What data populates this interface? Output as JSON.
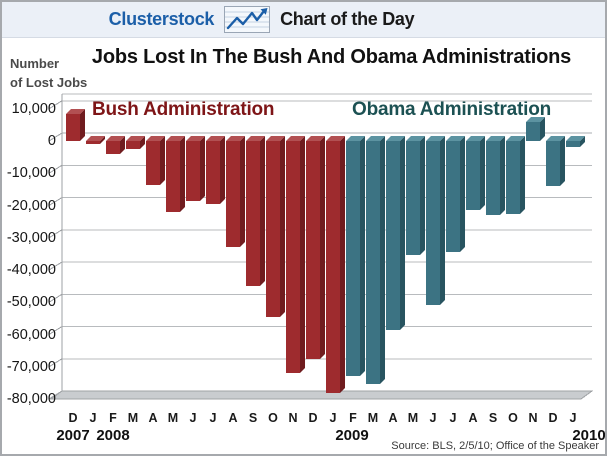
{
  "header": {
    "brand": "Clusterstock",
    "title": "Chart of the Day"
  },
  "title": "Jobs Lost In The Bush And Obama Administrations",
  "y_axis_caption_line1": "Number",
  "y_axis_caption_line2": "of Lost Jobs",
  "annotations": {
    "bush": "Bush Administration",
    "obama": "Obama Administration"
  },
  "source": "Source: BLS, 2/5/10; Office of the Speaker",
  "colors": {
    "brand_blue": "#1c5fa8",
    "header_bg": "#ebf0f7",
    "bush_label": "#7e1517",
    "obama_label": "#1c5153",
    "bush_front": "#9e2b2e",
    "bush_side": "#701c1f",
    "bush_top": "#b25052",
    "obama_front": "#3c7383",
    "obama_side": "#285460",
    "obama_top": "#5c93a1",
    "grid": "#b8bbbe",
    "wall_edge": "#9ea1a4",
    "floor_fill": "#c9cccf",
    "floor_edge": "#a0a3a6"
  },
  "chart_data": {
    "type": "bar",
    "title": "Jobs Lost In The Bush And Obama Administrations",
    "xlabel": "",
    "ylabel": "Number of Lost Jobs",
    "ylim": [
      -80000,
      10000
    ],
    "grid": true,
    "legend_position": "in-plot text labels",
    "style": "3d-column",
    "ytick_labels": [
      "10,000",
      "0",
      "-10,000",
      "-20,000",
      "-30,000",
      "-40,000",
      "-50,000",
      "-60,000",
      "-70,000",
      "-80,000"
    ],
    "ytick_values": [
      10000,
      0,
      -10000,
      -20000,
      -30000,
      -40000,
      -50000,
      -60000,
      -70000,
      -80000
    ],
    "years": [
      {
        "label": "2007",
        "first_bar_index": 0
      },
      {
        "label": "2008",
        "first_bar_index": 1
      },
      {
        "label": "2009",
        "first_bar_index": 13
      },
      {
        "label": "2010",
        "first_bar_index": 25
      }
    ],
    "series": [
      {
        "name": "Bush Administration",
        "color": "#9e2b2e",
        "bar_indices": [
          0,
          13
        ]
      },
      {
        "name": "Obama Administration",
        "color": "#3c7383",
        "bar_indices": [
          14,
          25
        ]
      }
    ],
    "bars": [
      {
        "month": "D",
        "year": 2007,
        "value": 8500,
        "admin": "bush"
      },
      {
        "month": "J",
        "year": 2008,
        "value": -1000,
        "admin": "bush"
      },
      {
        "month": "F",
        "year": 2008,
        "value": -4000,
        "admin": "bush"
      },
      {
        "month": "M",
        "year": 2008,
        "value": -2500,
        "admin": "bush"
      },
      {
        "month": "A",
        "year": 2008,
        "value": -13500,
        "admin": "bush"
      },
      {
        "month": "M",
        "year": 2008,
        "value": -22000,
        "admin": "bush"
      },
      {
        "month": "J",
        "year": 2008,
        "value": -18500,
        "admin": "bush"
      },
      {
        "month": "J",
        "year": 2008,
        "value": -19500,
        "admin": "bush"
      },
      {
        "month": "A",
        "year": 2008,
        "value": -33000,
        "admin": "bush"
      },
      {
        "month": "S",
        "year": 2008,
        "value": -45000,
        "admin": "bush"
      },
      {
        "month": "O",
        "year": 2008,
        "value": -54500,
        "admin": "bush"
      },
      {
        "month": "N",
        "year": 2008,
        "value": -72000,
        "admin": "bush"
      },
      {
        "month": "D",
        "year": 2008,
        "value": -67500,
        "admin": "bush"
      },
      {
        "month": "J",
        "year": 2009,
        "value": -78000,
        "admin": "bush"
      },
      {
        "month": "F",
        "year": 2009,
        "value": -73000,
        "admin": "obama"
      },
      {
        "month": "M",
        "year": 2009,
        "value": -75500,
        "admin": "obama"
      },
      {
        "month": "A",
        "year": 2009,
        "value": -58500,
        "admin": "obama"
      },
      {
        "month": "M",
        "year": 2009,
        "value": -35500,
        "admin": "obama"
      },
      {
        "month": "J",
        "year": 2009,
        "value": -51000,
        "admin": "obama"
      },
      {
        "month": "J",
        "year": 2009,
        "value": -34500,
        "admin": "obama"
      },
      {
        "month": "A",
        "year": 2009,
        "value": -21500,
        "admin": "obama"
      },
      {
        "month": "S",
        "year": 2009,
        "value": -23000,
        "admin": "obama"
      },
      {
        "month": "O",
        "year": 2009,
        "value": -22500,
        "admin": "obama"
      },
      {
        "month": "N",
        "year": 2009,
        "value": 6000,
        "admin": "obama"
      },
      {
        "month": "D",
        "year": 2009,
        "value": -14000,
        "admin": "obama"
      },
      {
        "month": "J",
        "year": 2010,
        "value": -2000,
        "admin": "obama"
      }
    ]
  }
}
